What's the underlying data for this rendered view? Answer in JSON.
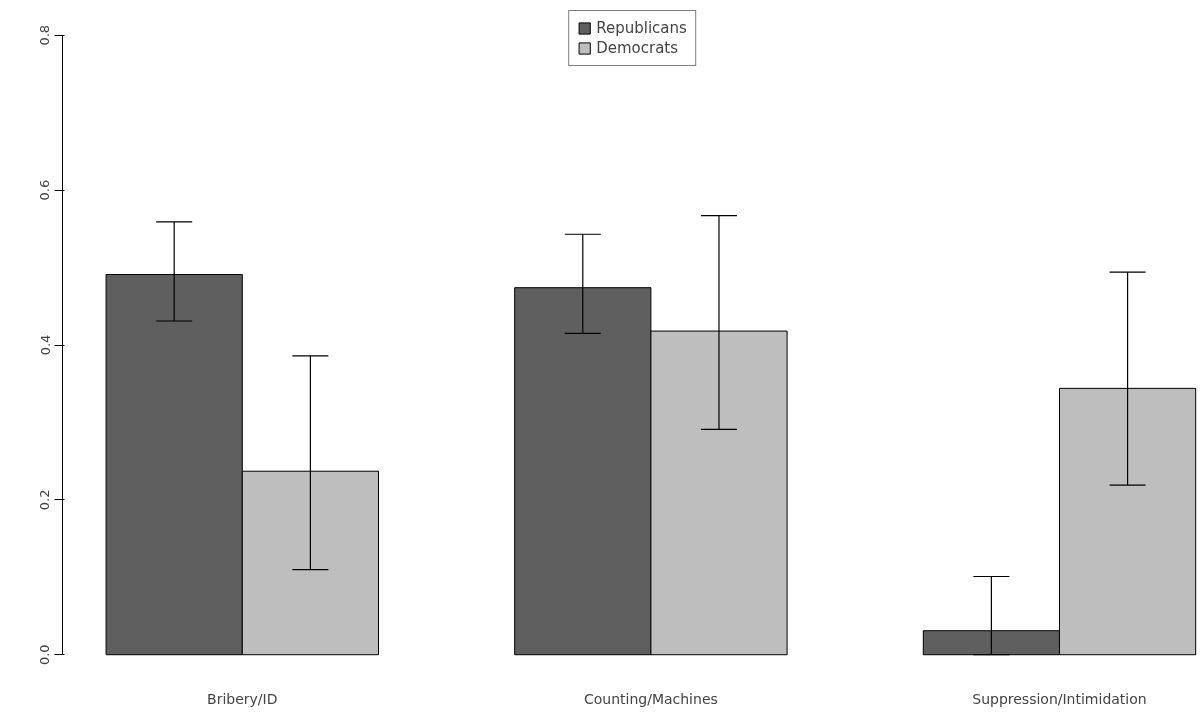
{
  "chart_data": {
    "type": "bar",
    "categories": [
      "Bribery/ID",
      "Counting/Machines",
      "Suppression/Intimidation"
    ],
    "series": [
      {
        "name": "Republicans",
        "color": "#5f5f5f",
        "values": [
          0.491,
          0.474,
          0.031
        ],
        "errors": [
          [
            0.431,
            0.559
          ],
          [
            0.415,
            0.543
          ],
          [
            0.0,
            0.101
          ]
        ]
      },
      {
        "name": "Democrats",
        "color": "#bebebe",
        "values": [
          0.237,
          0.418,
          0.344
        ],
        "errors": [
          [
            0.11,
            0.386
          ],
          [
            0.291,
            0.567
          ],
          [
            0.219,
            0.494
          ]
        ]
      }
    ],
    "ylim": [
      0,
      0.8
    ],
    "yticks": [
      {
        "value": 0,
        "label": "0.0"
      },
      0.2,
      0.4,
      0.6,
      0.8
    ],
    "grid": false,
    "legend": "top"
  }
}
